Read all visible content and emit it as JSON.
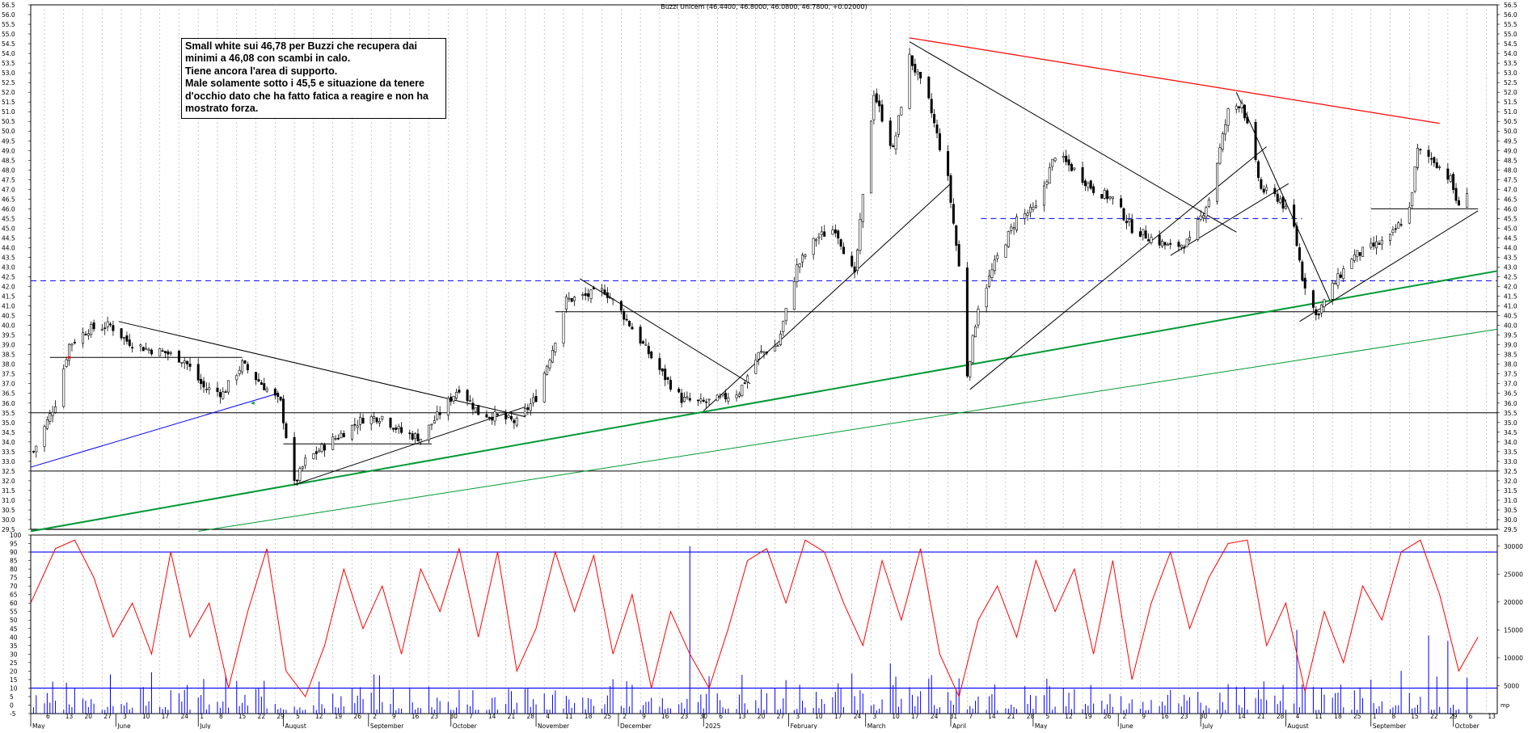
{
  "chart_data": [
    {
      "type": "candlestick",
      "title": "Buzzi Unicem (46.4400, 46.8000, 46.0800, 46.7800, +0.02000)",
      "ylim": [
        29.5,
        56.5
      ],
      "y_ticks": [
        "56.5",
        "56.0",
        "55.5",
        "55.0",
        "54.5",
        "54.0",
        "53.5",
        "53.0",
        "52.5",
        "52.0",
        "51.5",
        "51.0",
        "50.5",
        "50.0",
        "49.5",
        "49.0",
        "48.5",
        "48.0",
        "47.5",
        "47.0",
        "46.5",
        "46.0",
        "45.5",
        "45.0",
        "44.5",
        "44.0",
        "43.5",
        "43.0",
        "42.5",
        "42.0",
        "41.5",
        "41.0",
        "40.5",
        "40.0",
        "39.5",
        "39.0",
        "38.5",
        "38.0",
        "37.5",
        "37.0",
        "36.5",
        "36.0",
        "35.5",
        "35.0",
        "34.5",
        "34.0",
        "33.5",
        "33.0",
        "32.5",
        "32.0",
        "31.5",
        "31.0",
        "30.5",
        "30.0",
        "29.5"
      ],
      "x_range": [
        "2024-05-01",
        "2025-10-17"
      ],
      "grid": true,
      "last_close": 46.78,
      "price_path": [
        [
          "2024-05-02",
          33.5
        ],
        [
          "2024-05-10",
          36.0
        ],
        [
          "2024-05-15",
          39.0
        ],
        [
          "2024-05-22",
          39.8
        ],
        [
          "2024-05-30",
          40.0
        ],
        [
          "2024-06-05",
          39.2
        ],
        [
          "2024-06-12",
          38.8
        ],
        [
          "2024-06-19",
          38.6
        ],
        [
          "2024-06-26",
          38.2
        ],
        [
          "2024-07-03",
          36.8
        ],
        [
          "2024-07-10",
          36.5
        ],
        [
          "2024-07-17",
          38.0
        ],
        [
          "2024-07-24",
          37.0
        ],
        [
          "2024-07-31",
          36.0
        ],
        [
          "2024-08-05",
          31.8
        ],
        [
          "2024-08-09",
          33.0
        ],
        [
          "2024-08-16",
          33.8
        ],
        [
          "2024-08-23",
          34.5
        ],
        [
          "2024-08-30",
          35.2
        ],
        [
          "2024-09-06",
          35.3
        ],
        [
          "2024-09-13",
          34.5
        ],
        [
          "2024-09-20",
          34.2
        ],
        [
          "2024-09-27",
          35.5
        ],
        [
          "2024-10-04",
          36.8
        ],
        [
          "2024-10-11",
          35.5
        ],
        [
          "2024-10-18",
          35.3
        ],
        [
          "2024-10-25",
          35.0
        ],
        [
          "2024-11-01",
          36.3
        ],
        [
          "2024-11-07",
          38.8
        ],
        [
          "2024-11-12",
          41.3
        ],
        [
          "2024-11-19",
          41.5
        ],
        [
          "2024-11-26",
          41.8
        ],
        [
          "2024-12-03",
          40.5
        ],
        [
          "2024-12-10",
          39.0
        ],
        [
          "2024-12-17",
          37.5
        ],
        [
          "2024-12-24",
          36.2
        ],
        [
          "2024-12-31",
          36.0
        ],
        [
          "2025-01-07",
          36.2
        ],
        [
          "2025-01-14",
          36.6
        ],
        [
          "2025-01-21",
          38.5
        ],
        [
          "2025-01-28",
          39.0
        ],
        [
          "2025-02-04",
          43.0
        ],
        [
          "2025-02-11",
          44.5
        ],
        [
          "2025-02-18",
          45.0
        ],
        [
          "2025-02-25",
          42.5
        ],
        [
          "2025-03-04",
          52.0
        ],
        [
          "2025-03-11",
          49.0
        ],
        [
          "2025-03-17",
          53.8
        ],
        [
          "2025-03-24",
          51.5
        ],
        [
          "2025-03-31",
          47.5
        ],
        [
          "2025-04-04",
          43.0
        ],
        [
          "2025-04-07",
          37.5
        ],
        [
          "2025-04-11",
          41.0
        ],
        [
          "2025-04-18",
          43.5
        ],
        [
          "2025-04-25",
          45.5
        ],
        [
          "2025-05-02",
          46.0
        ],
        [
          "2025-05-09",
          48.8
        ],
        [
          "2025-05-16",
          48.0
        ],
        [
          "2025-05-23",
          47.0
        ],
        [
          "2025-05-30",
          46.5
        ],
        [
          "2025-06-06",
          45.0
        ],
        [
          "2025-06-13",
          44.5
        ],
        [
          "2025-06-20",
          44.0
        ],
        [
          "2025-06-27",
          44.3
        ],
        [
          "2025-07-04",
          46.5
        ],
        [
          "2025-07-11",
          51.0
        ],
        [
          "2025-07-16",
          51.5
        ],
        [
          "2025-07-23",
          47.0
        ],
        [
          "2025-07-30",
          46.5
        ],
        [
          "2025-08-04",
          45.0
        ],
        [
          "2025-08-07",
          42.5
        ],
        [
          "2025-08-12",
          40.5
        ],
        [
          "2025-08-18",
          42.0
        ],
        [
          "2025-08-25",
          43.5
        ],
        [
          "2025-09-01",
          44.0
        ],
        [
          "2025-09-08",
          44.5
        ],
        [
          "2025-09-15",
          46.0
        ],
        [
          "2025-09-18",
          49.0
        ],
        [
          "2025-09-24",
          48.5
        ],
        [
          "2025-09-30",
          47.5
        ],
        [
          "2025-10-03",
          46.0
        ],
        [
          "2025-10-06",
          46.78
        ]
      ]
    },
    {
      "type": "line",
      "ylim": [
        -5,
        100
      ],
      "left_ticks": [
        "100",
        "95",
        "90",
        "85",
        "80",
        "75",
        "70",
        "65",
        "60",
        "55",
        "50",
        "45",
        "40",
        "35",
        "30",
        "25",
        "20",
        "15",
        "10",
        "5",
        "0",
        "-5"
      ],
      "right_ticks": [
        "30000",
        "25000",
        "20000",
        "15000",
        "10000",
        "5000"
      ],
      "bounds": [
        90,
        10
      ],
      "oscillator_path": [
        [
          "2024-05-01",
          60
        ],
        [
          "2024-05-10",
          92
        ],
        [
          "2024-05-17",
          97
        ],
        [
          "2024-05-24",
          75
        ],
        [
          "2024-05-31",
          40
        ],
        [
          "2024-06-07",
          60
        ],
        [
          "2024-06-14",
          30
        ],
        [
          "2024-06-21",
          90
        ],
        [
          "2024-06-28",
          40
        ],
        [
          "2024-07-05",
          60
        ],
        [
          "2024-07-12",
          10
        ],
        [
          "2024-07-19",
          55
        ],
        [
          "2024-07-26",
          92
        ],
        [
          "2024-08-02",
          20
        ],
        [
          "2024-08-09",
          5
        ],
        [
          "2024-08-16",
          35
        ],
        [
          "2024-08-23",
          80
        ],
        [
          "2024-08-30",
          45
        ],
        [
          "2024-09-06",
          70
        ],
        [
          "2024-09-13",
          30
        ],
        [
          "2024-09-20",
          80
        ],
        [
          "2024-09-27",
          55
        ],
        [
          "2024-10-04",
          92
        ],
        [
          "2024-10-11",
          40
        ],
        [
          "2024-10-18",
          90
        ],
        [
          "2024-10-25",
          20
        ],
        [
          "2024-11-01",
          45
        ],
        [
          "2024-11-08",
          90
        ],
        [
          "2024-11-15",
          55
        ],
        [
          "2024-11-22",
          88
        ],
        [
          "2024-11-29",
          30
        ],
        [
          "2024-12-06",
          65
        ],
        [
          "2024-12-13",
          10
        ],
        [
          "2024-12-20",
          55
        ],
        [
          "2024-12-27",
          30
        ],
        [
          "2025-01-03",
          10
        ],
        [
          "2025-01-10",
          45
        ],
        [
          "2025-01-17",
          85
        ],
        [
          "2025-01-24",
          92
        ],
        [
          "2025-01-31",
          60
        ],
        [
          "2025-02-07",
          97
        ],
        [
          "2025-02-14",
          90
        ],
        [
          "2025-02-21",
          60
        ],
        [
          "2025-02-28",
          35
        ],
        [
          "2025-03-07",
          85
        ],
        [
          "2025-03-14",
          50
        ],
        [
          "2025-03-21",
          92
        ],
        [
          "2025-03-28",
          30
        ],
        [
          "2025-04-04",
          5
        ],
        [
          "2025-04-11",
          50
        ],
        [
          "2025-04-18",
          70
        ],
        [
          "2025-04-25",
          40
        ],
        [
          "2025-05-02",
          85
        ],
        [
          "2025-05-09",
          55
        ],
        [
          "2025-05-16",
          80
        ],
        [
          "2025-05-23",
          30
        ],
        [
          "2025-05-30",
          85
        ],
        [
          "2025-06-06",
          15
        ],
        [
          "2025-06-13",
          60
        ],
        [
          "2025-06-20",
          90
        ],
        [
          "2025-06-27",
          45
        ],
        [
          "2025-07-04",
          75
        ],
        [
          "2025-07-11",
          95
        ],
        [
          "2025-07-18",
          97
        ],
        [
          "2025-07-25",
          35
        ],
        [
          "2025-08-01",
          60
        ],
        [
          "2025-08-08",
          8
        ],
        [
          "2025-08-15",
          55
        ],
        [
          "2025-08-22",
          25
        ],
        [
          "2025-08-29",
          70
        ],
        [
          "2025-09-05",
          50
        ],
        [
          "2025-09-12",
          90
        ],
        [
          "2025-09-19",
          97
        ],
        [
          "2025-09-26",
          65
        ],
        [
          "2025-10-03",
          20
        ],
        [
          "2025-10-10",
          40
        ]
      ],
      "volume_spikes": [
        [
          "2024-12-27",
          30000
        ],
        [
          "2025-03-10",
          9000
        ],
        [
          "2025-08-05",
          15000
        ],
        [
          "2025-09-22",
          14000
        ],
        [
          "2025-09-29",
          13000
        ]
      ]
    }
  ],
  "x_axis": {
    "day_ticks": [
      "6",
      "13",
      "20",
      "27",
      "3",
      "10",
      "17",
      "24",
      "1",
      "8",
      "15",
      "22",
      "29",
      "5",
      "12",
      "19",
      "26",
      "2",
      "9",
      "16",
      "23",
      "30",
      "7",
      "14",
      "21",
      "28",
      "4",
      "11",
      "18",
      "25",
      "2",
      "9",
      "16",
      "23",
      "30",
      "6",
      "13",
      "20",
      "27",
      "3",
      "10",
      "17",
      "24",
      "3",
      "10",
      "17",
      "24",
      "31",
      "7",
      "14",
      "21",
      "28",
      "5",
      "12",
      "19",
      "26",
      "2",
      "9",
      "16",
      "23",
      "30",
      "7",
      "14",
      "21",
      "28",
      "4",
      "11",
      "18",
      "25",
      "1",
      "8",
      "15",
      "22",
      "29",
      "6",
      "13"
    ],
    "month_labels": [
      "May",
      "June",
      "July",
      "August",
      "September",
      "October",
      "November",
      "December",
      "2025",
      "February",
      "March",
      "April",
      "May",
      "June",
      "July",
      "August",
      "September",
      "October"
    ],
    "corner_label": "mp"
  },
  "note": {
    "lines": [
      "Small white sui 46,78 per Buzzi che recupera dai",
      "minimi a 46,08 con scambi in calo.",
      "Tiene ancora l'area di supporto.",
      "Male solamente sotto i 45,5 e situazione da tenere",
      "d'occhio dato che ha fatto fatica a reagire e non ha",
      "mostrato forza."
    ]
  },
  "colors": {
    "candle": "#000000",
    "red_trend": "#ff0000",
    "blue_trend": "#0000ff",
    "dashed_level": "#0000ff",
    "green_trend": "#009933",
    "oscillator": "#ff0000",
    "volume": "#0000ff",
    "bound_lines": "#0000ff",
    "grid": "#b4b4b4"
  }
}
